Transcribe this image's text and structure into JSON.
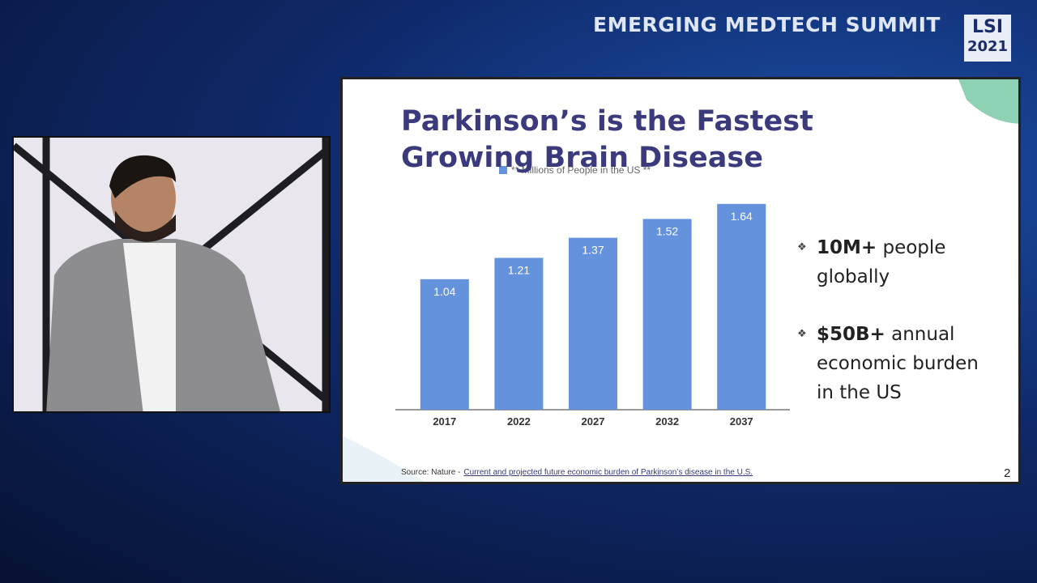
{
  "header": {
    "title": "EMERGING MEDTECH SUMMIT",
    "logo": {
      "line1": "LSI",
      "line2": "2021"
    }
  },
  "chart_data": {
    "type": "bar",
    "title": "Parkinson’s is the Fastest Growing Brain Disease",
    "series": [
      {
        "name": "** Millions of People in the US **",
        "color": "#6492dc",
        "values": [
          1.04,
          1.21,
          1.37,
          1.52,
          1.64
        ]
      }
    ],
    "categories": [
      "2017",
      "2022",
      "2027",
      "2032",
      "2037"
    ],
    "ylim": [
      0,
      2
    ]
  },
  "bullets": [
    {
      "bold": "10M+",
      "text": "people globally"
    },
    {
      "bold": "$50B+",
      "text": "annual economic burden in the US"
    }
  ],
  "source": {
    "label": "Source: Nature -",
    "link": "Current and projected future economic burden of Parkinson’s disease in the U.S."
  },
  "page_number": "2"
}
